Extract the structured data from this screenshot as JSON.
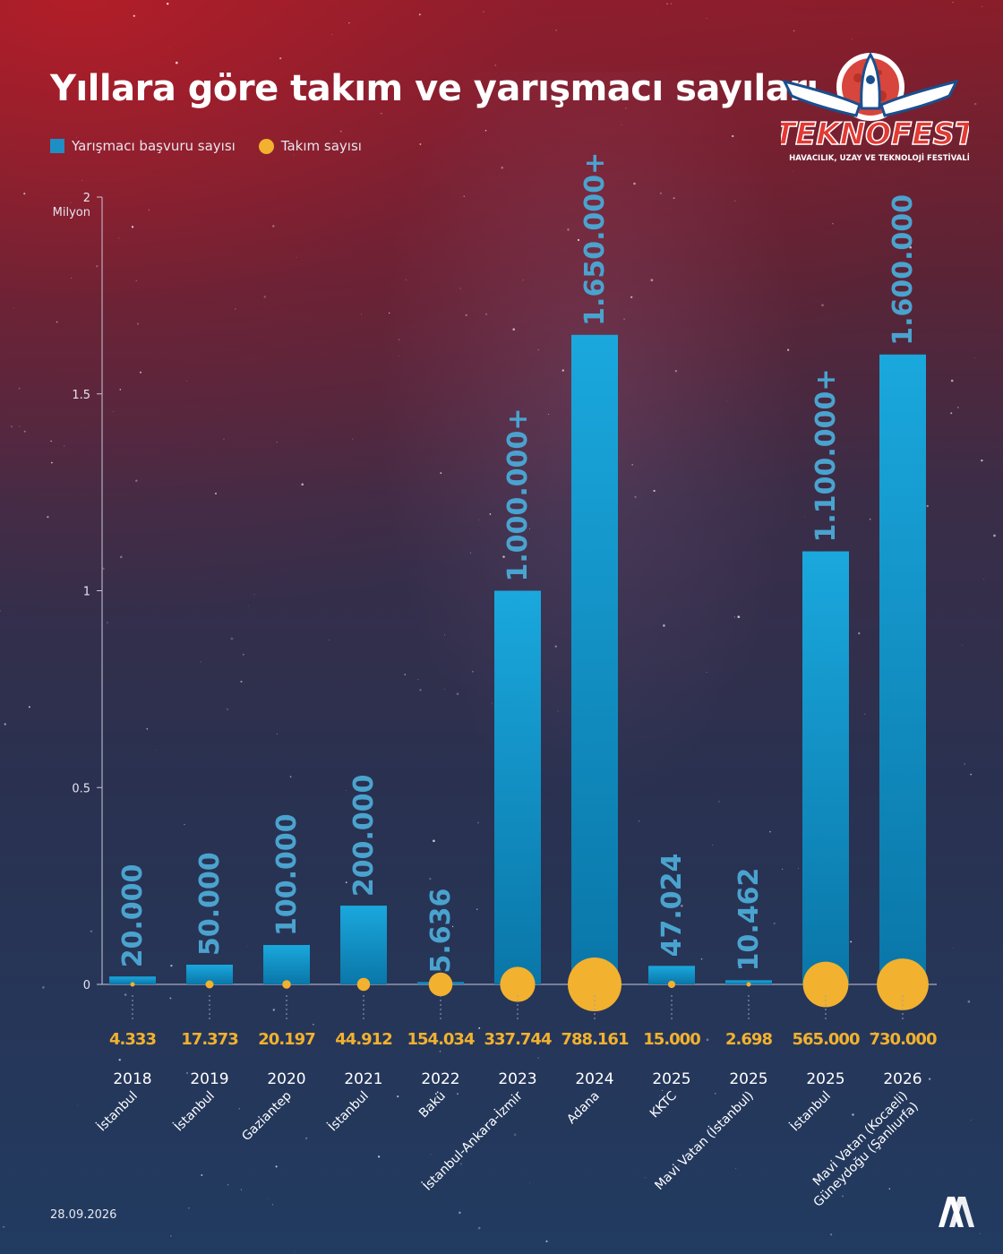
{
  "title": "Yıllara göre takım ve yarışmacı sayıları",
  "legend": {
    "applicants": "Yarışmacı başvuru sayısı",
    "teams": "Takım sayısı"
  },
  "date": "28.09.2026",
  "logo": {
    "name": "TEKNOFEST",
    "subtitle": "HAVACILIK, UZAY VE TEKNOLOJİ FESTİVALİ"
  },
  "agency": "AA",
  "colors": {
    "bar": "#1e8fc4",
    "bar_label": "#4aa3cf",
    "team": "#f2b12e"
  },
  "chart_data": {
    "type": "bar",
    "ylabel": "Milyon",
    "ylim": [
      0,
      2
    ],
    "yticks": [
      {
        "value": 0,
        "label": "0"
      },
      {
        "value": 0.5,
        "label": "0.5"
      },
      {
        "value": 1,
        "label": "1"
      },
      {
        "value": 1.5,
        "label": "1.5"
      },
      {
        "value": 2,
        "label": "2"
      }
    ],
    "items": [
      {
        "year": "2018",
        "city": "İstanbul",
        "applicants": 20000,
        "applicants_label": "20.000",
        "teams": 4333,
        "teams_label": "4.333"
      },
      {
        "year": "2019",
        "city": "İstanbul",
        "applicants": 50000,
        "applicants_label": "50.000",
        "teams": 17373,
        "teams_label": "17.373"
      },
      {
        "year": "2020",
        "city": "Gaziantep",
        "applicants": 100000,
        "applicants_label": "100.000",
        "teams": 20197,
        "teams_label": "20.197"
      },
      {
        "year": "2021",
        "city": "İstanbul",
        "applicants": 200000,
        "applicants_label": "200.000",
        "teams": 44912,
        "teams_label": "44.912"
      },
      {
        "year": "2022",
        "city": "Bakü",
        "applicants": 5636,
        "applicants_label": "5.636",
        "teams": 154034,
        "teams_label": "154.034"
      },
      {
        "year": "2023",
        "city": "İstanbul-Ankara-İzmir",
        "applicants": 1000000,
        "applicants_label": "1.000.000+",
        "teams": 337744,
        "teams_label": "337.744"
      },
      {
        "year": "2024",
        "city": "Adana",
        "applicants": 1650000,
        "applicants_label": "1.650.000+",
        "teams": 788161,
        "teams_label": "788.161"
      },
      {
        "year": "2025",
        "city": "KKTC",
        "applicants": 47024,
        "applicants_label": "47.024",
        "teams": 15000,
        "teams_label": "15.000"
      },
      {
        "year": "2025",
        "city": "Mavi Vatan (İstanbul)",
        "applicants": 10462,
        "applicants_label": "10.462",
        "teams": 2698,
        "teams_label": "2.698"
      },
      {
        "year": "2025",
        "city": "İstanbul",
        "applicants": 1100000,
        "applicants_label": "1.100.000+",
        "teams": 565000,
        "teams_label": "565.000"
      },
      {
        "year": "2026",
        "city": "Mavi Vatan (Kocaeli)\nGüneydoğu (Şanlıurfa)",
        "applicants": 1600000,
        "applicants_label": "1.600.000",
        "teams": 730000,
        "teams_label": "730.000"
      }
    ]
  }
}
